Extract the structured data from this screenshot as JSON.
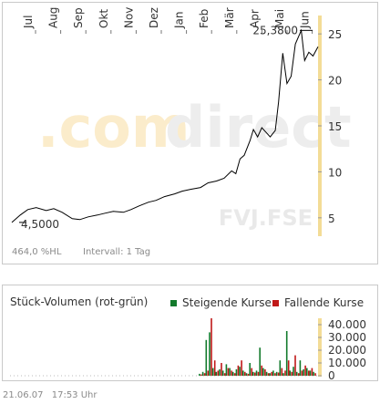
{
  "watermark": {
    "brand_prefix": ".com",
    "brand_suffix": "direct",
    "ticker": "FVJ.FSE"
  },
  "info": {
    "hl_change": "464,0 %HL",
    "interval": "Intervall: 1 Tag"
  },
  "footer": {
    "date": "21.06.07",
    "time": "17:53 Uhr"
  },
  "colors": {
    "line": "#000000",
    "rising": "#137a2c",
    "falling": "#c01818",
    "accent": "#f3dc96",
    "watermark": "#e9e9e9",
    "watermark_brand": "#fbeccb"
  },
  "chart_data": [
    {
      "type": "line",
      "x_tick_labels": [
        "Jul",
        "Aug",
        "Sep",
        "Okt",
        "Nov",
        "Dez",
        "Jan",
        "Feb",
        "Mär",
        "Apr",
        "Mai",
        "Jun"
      ],
      "ylim": [
        3,
        27
      ],
      "y_ticks": [
        5,
        10,
        15,
        20,
        25
      ],
      "grid": false,
      "annotations": [
        {
          "text": "4,5000",
          "x": "Jun 2006",
          "y": 4.5
        },
        {
          "text": "25,3800",
          "x": "Jun 2007",
          "y": 25.38
        }
      ],
      "series": [
        {
          "x": [
            "2006-06-21",
            "2006-07-01",
            "2006-07-10",
            "2006-07-20",
            "2006-08-01",
            "2006-08-10",
            "2006-08-20",
            "2006-09-01",
            "2006-09-10",
            "2006-09-20",
            "2006-10-01",
            "2006-10-10",
            "2006-10-20",
            "2006-11-01",
            "2006-11-10",
            "2006-11-20",
            "2006-12-01",
            "2006-12-10",
            "2006-12-20",
            "2007-01-01",
            "2007-01-10",
            "2007-01-20",
            "2007-02-01",
            "2007-02-10",
            "2007-02-20",
            "2007-03-01",
            "2007-03-10",
            "2007-03-15",
            "2007-03-20",
            "2007-03-25",
            "2007-04-01",
            "2007-04-05",
            "2007-04-10",
            "2007-04-15",
            "2007-04-20",
            "2007-04-25",
            "2007-05-01",
            "2007-05-05",
            "2007-05-10",
            "2007-05-15",
            "2007-05-20",
            "2007-05-25",
            "2007-06-01",
            "2007-06-05",
            "2007-06-10",
            "2007-06-15",
            "2007-06-21"
          ],
          "values": [
            4.5,
            5.3,
            5.9,
            6.1,
            5.8,
            6.0,
            5.6,
            4.9,
            4.8,
            5.1,
            5.3,
            5.5,
            5.7,
            5.6,
            5.9,
            6.3,
            6.7,
            6.9,
            7.3,
            7.6,
            7.9,
            8.1,
            8.3,
            8.8,
            9.0,
            9.3,
            10.1,
            9.8,
            11.4,
            11.8,
            13.4,
            14.6,
            13.8,
            14.8,
            14.3,
            13.8,
            14.5,
            17.6,
            22.9,
            19.6,
            20.4,
            23.9,
            25.38,
            22.1,
            23.0,
            22.6,
            23.6
          ]
        }
      ]
    },
    {
      "type": "bar",
      "title": "Stück-Volumen (rot-grün)",
      "legend": [
        "Steigende Kurse",
        "Fallende Kurse"
      ],
      "legend_position": "top-right",
      "ylim": [
        0,
        45000
      ],
      "y_ticks": [
        0,
        10000,
        20000,
        30000,
        40000
      ],
      "y_tick_labels": [
        "0",
        "10.000",
        "20.000",
        "30.000",
        "40.000"
      ],
      "x": [
        "2007-02-01",
        "2007-02-05",
        "2007-02-09",
        "2007-02-13",
        "2007-02-17",
        "2007-02-21",
        "2007-02-25",
        "2007-03-01",
        "2007-03-05",
        "2007-03-09",
        "2007-03-13",
        "2007-03-17",
        "2007-03-21",
        "2007-03-25",
        "2007-03-29",
        "2007-04-02",
        "2007-04-06",
        "2007-04-10",
        "2007-04-14",
        "2007-04-18",
        "2007-04-22",
        "2007-04-26",
        "2007-04-30",
        "2007-05-04",
        "2007-05-08",
        "2007-05-12",
        "2007-05-16",
        "2007-05-20",
        "2007-05-24",
        "2007-05-28",
        "2007-06-01",
        "2007-06-05",
        "2007-06-09",
        "2007-06-13",
        "2007-06-17"
      ],
      "series": [
        {
          "name": "Steigende Kurse",
          "values": [
            1500,
            3000,
            28000,
            34000,
            6000,
            3000,
            5000,
            4000,
            9000,
            6000,
            3000,
            5000,
            7000,
            4000,
            2000,
            10000,
            3000,
            4000,
            22000,
            6000,
            3000,
            2000,
            4000,
            3000,
            12000,
            2000,
            35000,
            4000,
            7000,
            3000,
            12000,
            5000,
            6000,
            4000,
            3000
          ]
        },
        {
          "name": "Fallende Kurse",
          "values": [
            1000,
            2000,
            4000,
            45000,
            12000,
            4000,
            10000,
            2000,
            6000,
            4000,
            2000,
            8000,
            12000,
            3000,
            1500,
            6000,
            2500,
            3000,
            8000,
            5000,
            2000,
            3000,
            2000,
            2500,
            6000,
            4000,
            12000,
            3000,
            16000,
            2000,
            4000,
            8000,
            4000,
            6000,
            2000
          ]
        }
      ]
    }
  ]
}
